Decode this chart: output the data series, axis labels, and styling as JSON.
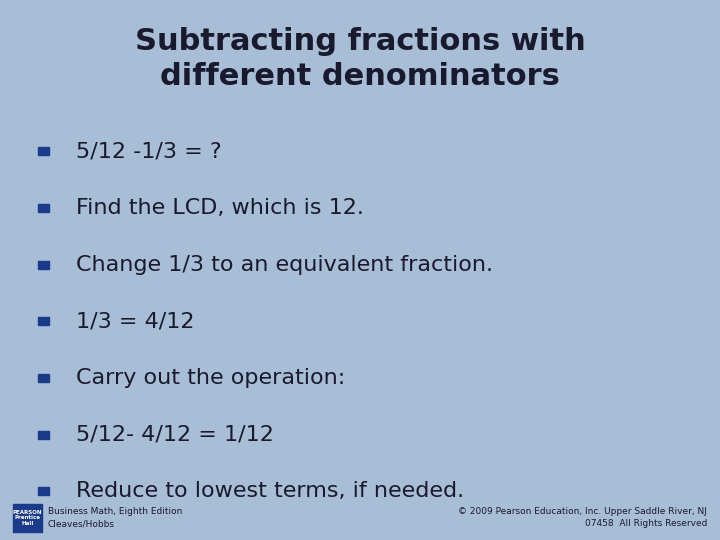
{
  "title_line1": "Subtracting fractions with",
  "title_line2": "different denominators",
  "title_fontsize": 22,
  "title_color": "#1a1a2e",
  "bg_color": "#a8bdd6",
  "bullet_color": "#1a3a8a",
  "text_color": "#1a1a2e",
  "bullet_items": [
    "5/12 -1/3 = ?",
    "Find the LCD, which is 12.",
    "Change 1/3 to an equivalent fraction.",
    "1/3 = 4/12",
    "Carry out the operation:",
    "5/12- 4/12 = 1/12",
    "Reduce to lowest terms, if needed."
  ],
  "bullet_fontsize": 16,
  "footer_left_line1": "Business Math, Eighth Edition",
  "footer_left_line2": "Cleaves/Hobbs",
  "footer_right": "© 2009 Pearson Education, Inc. Upper Saddle River, NJ\n07458  All Rights Reserved",
  "footer_fontsize": 6.5,
  "logo_color": "#1a3a8a",
  "logo_label": "PEARSON\nPrentice\nHall"
}
